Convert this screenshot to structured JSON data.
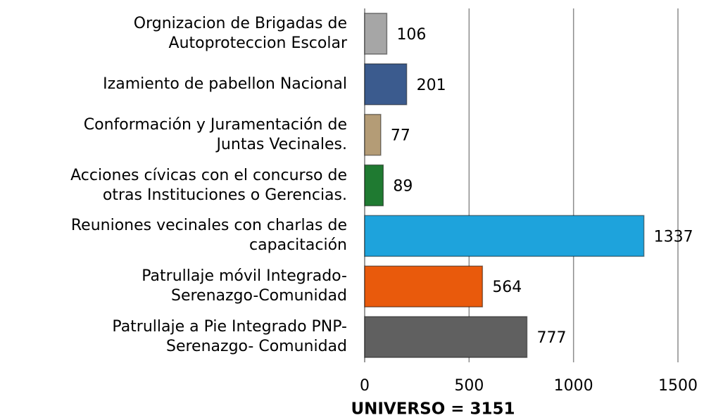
{
  "chart_data": {
    "type": "barh",
    "title": "UNIVERSO = 3151",
    "categories": [
      "Orgnizacion de Brigadas de\nAutoproteccion Escolar",
      "Izamiento de pabellon Nacional",
      "Conformación y Juramentación de\nJuntas Vecinales.",
      "Acciones cívicas con el concurso de\notras Instituciones o Gerencias.",
      "Reuniones vecinales con charlas de\ncapacitación",
      "Patrullaje móvil Integrado-\nSerenazgo-Comunidad",
      "Patrullaje a Pie Integrado PNP-\nSerenazgo- Comunidad"
    ],
    "values": [
      106,
      201,
      77,
      89,
      1337,
      564,
      777
    ],
    "colors": [
      "#a6a6a6",
      "#3b5b8e",
      "#b49c76",
      "#1f7a31",
      "#1ea3dc",
      "#e95a0c",
      "#606060"
    ],
    "xlim": [
      0,
      1500
    ],
    "xticks": [
      0,
      500,
      1000,
      1500
    ],
    "grid": true
  }
}
